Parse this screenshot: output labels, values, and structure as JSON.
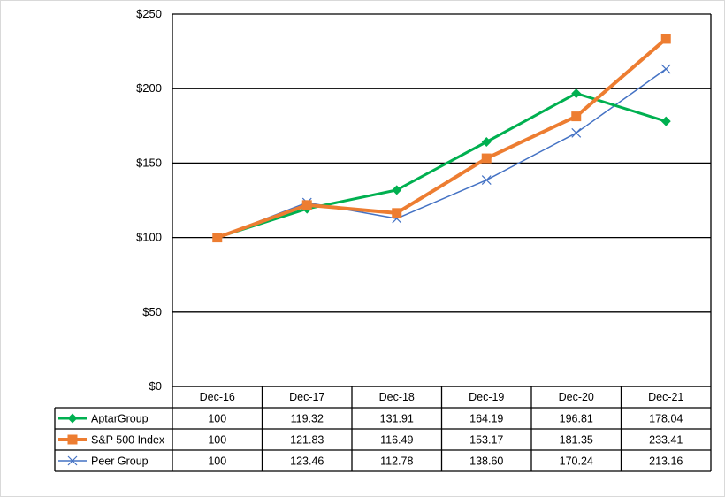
{
  "chart_data": {
    "type": "line",
    "title": "",
    "xlabel": "",
    "ylabel": "",
    "categories": [
      "Dec-16",
      "Dec-17",
      "Dec-18",
      "Dec-19",
      "Dec-20",
      "Dec-21"
    ],
    "ylim": [
      0,
      250
    ],
    "yticks": [
      0,
      50,
      100,
      150,
      200,
      250
    ],
    "ytick_labels": [
      "$0",
      "$50",
      "$100",
      "$150",
      "$200",
      "$250"
    ],
    "grid": true,
    "legend": "data-table-left",
    "series": [
      {
        "name": "AptarGroup",
        "values": [
          100,
          119.32,
          131.91,
          164.19,
          196.81,
          178.04
        ],
        "labels": [
          "100",
          "119.32",
          "131.91",
          "164.19",
          "196.81",
          "178.04"
        ],
        "color": "#00b050",
        "marker": "diamond"
      },
      {
        "name": "S&P 500 Index",
        "values": [
          100,
          121.83,
          116.49,
          153.17,
          181.35,
          233.41
        ],
        "labels": [
          "100",
          "121.83",
          "116.49",
          "153.17",
          "181.35",
          "233.41"
        ],
        "color": "#ed7d31",
        "marker": "square"
      },
      {
        "name": "Peer Group",
        "values": [
          100,
          123.46,
          112.78,
          138.6,
          170.24,
          213.16
        ],
        "labels": [
          "100",
          "123.46",
          "112.78",
          "138.60",
          "170.24",
          "213.16"
        ],
        "color": "#4472c4",
        "marker": "x"
      }
    ]
  }
}
